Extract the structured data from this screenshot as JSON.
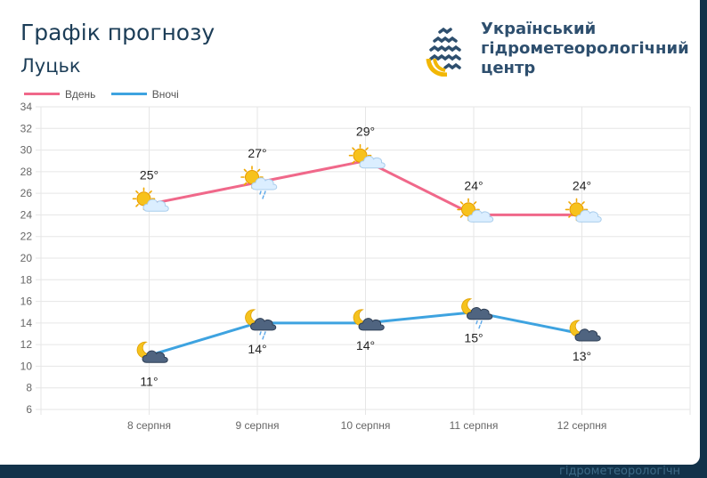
{
  "header": {
    "title": "Графік прогнозу",
    "city": "Луцьк",
    "org_line1": "Український",
    "org_line2": "гідрометеорологічний",
    "org_line3": "центр",
    "footer_partial": "гідрометеорологічн"
  },
  "colors": {
    "day": "#f0688a",
    "night": "#3ea3e0",
    "grid": "#e6e6e6"
  },
  "chart_data": {
    "type": "line",
    "categories": [
      "8 серпня",
      "9 серпня",
      "10 серпня",
      "11 серпня",
      "12 серпня"
    ],
    "ylim": [
      6,
      34
    ],
    "yticks": [
      6,
      8,
      10,
      12,
      14,
      16,
      18,
      20,
      22,
      24,
      26,
      28,
      30,
      32,
      34
    ],
    "legend_position": "top-left",
    "series": [
      {
        "name": "Вдень",
        "values": [
          25,
          27,
          29,
          24,
          24
        ],
        "labels": [
          "25°",
          "27°",
          "29°",
          "24°",
          "24°"
        ],
        "icons": [
          "sun-cloud-icon",
          "sun-cloud-rain-icon",
          "sun-cloud-icon",
          "sun-cloud-icon",
          "sun-cloud-icon"
        ]
      },
      {
        "name": "Вночі",
        "values": [
          11,
          14,
          14,
          15,
          13
        ],
        "labels": [
          "11°",
          "14°",
          "14°",
          "15°",
          "13°"
        ],
        "icons": [
          "moon-cloud-icon",
          "moon-cloud-rain-icon",
          "moon-cloud-icon",
          "moon-cloud-rain-icon",
          "moon-cloud-icon"
        ]
      }
    ]
  }
}
